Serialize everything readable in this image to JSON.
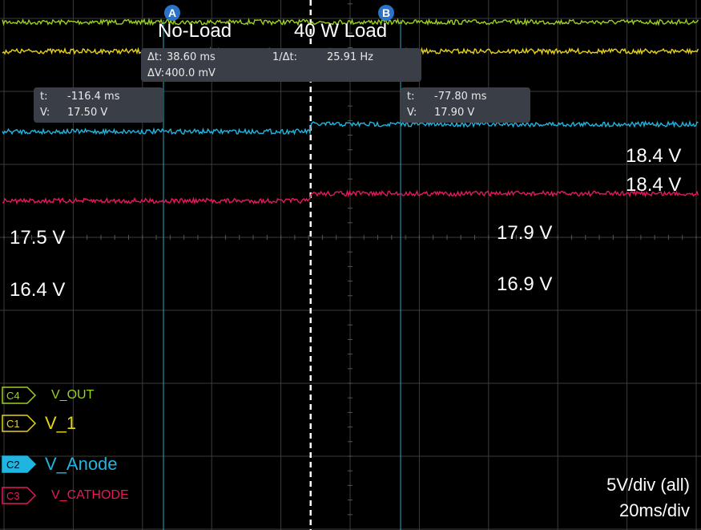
{
  "chart_data": {
    "type": "line",
    "title": "",
    "cursors": {
      "a": {
        "marker": "A",
        "t": "-116.4 ms",
        "v": "17.50 V"
      },
      "b": {
        "marker": "B",
        "t": "-77.80 ms",
        "v": "17.90 V"
      },
      "delta": {
        "dt_label": "Δt:",
        "dt": "38.60 ms",
        "inv_label": "1/Δt:",
        "inv": "25.91 Hz",
        "dv_label": "ΔV:",
        "dv": "400.0 mV"
      }
    },
    "regions": {
      "left": "No-Load",
      "right": "40 W Load"
    },
    "xlim_div": [
      -5,
      5
    ],
    "ylim_div": [
      -4,
      4
    ],
    "transition_time_div": -0.57,
    "grid": true,
    "series": [
      {
        "channel": "C4",
        "name": "V_OUT",
        "color": "#9bd11f",
        "before_div": 2.95,
        "after_div": 2.95,
        "label_before": "",
        "label_after": "18.4 V"
      },
      {
        "channel": "C1",
        "name": "V_1",
        "color": "#e6d31a",
        "before_div": 2.55,
        "after_div": 2.55,
        "label_before": "",
        "label_after": "18.4 V"
      },
      {
        "channel": "C2",
        "name": "V_Anode",
        "color": "#20b4e0",
        "before_div": 1.45,
        "after_div": 1.55,
        "label_before": "17.5 V",
        "label_after": "17.9 V"
      },
      {
        "channel": "C3",
        "name": "V_CATHODE",
        "color": "#e5195b",
        "before_div": 0.5,
        "after_div": 0.6,
        "label_before": "16.4 V",
        "label_after": "16.9 V"
      }
    ],
    "scale": {
      "vdiv": "5V/div (all)",
      "tdiv": "20ms/div"
    }
  }
}
